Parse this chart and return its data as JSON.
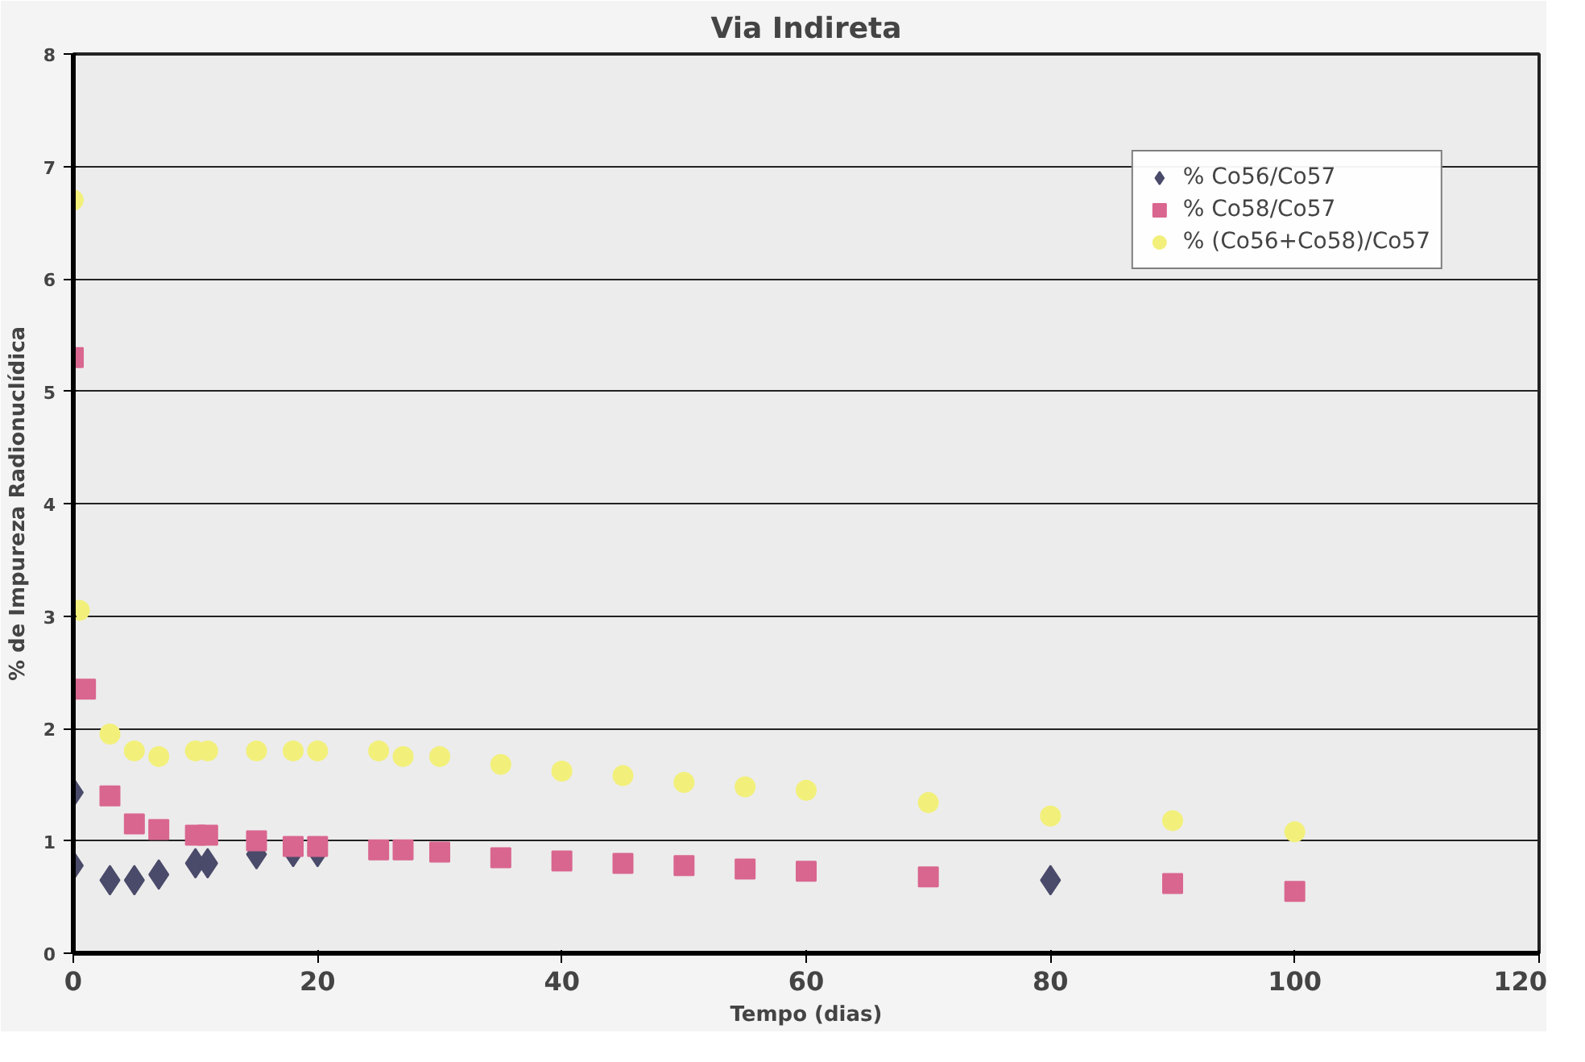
{
  "chart_data": {
    "type": "scatter",
    "title": "Via Indireta",
    "xlabel": "Tempo (dias)",
    "ylabel": "% de Impureza Radionuclídica",
    "xlim": [
      0,
      120
    ],
    "xticks": [
      0,
      20,
      40,
      60,
      80,
      100,
      120
    ],
    "ylim": [
      0,
      8
    ],
    "yticks": [
      0,
      1,
      2,
      3,
      4,
      5,
      6,
      7,
      8
    ],
    "grid": "y",
    "legend": "top right",
    "series": [
      {
        "name": "% Co56/Co57",
        "color": "#4a4a6a",
        "marker": "diamond",
        "x": [
          0,
          0,
          3,
          5,
          7,
          10,
          11,
          15,
          18,
          20,
          80
        ],
        "values": [
          1.43,
          0.78,
          0.65,
          0.65,
          0.7,
          0.8,
          0.8,
          0.88,
          0.9,
          0.9,
          0.65
        ]
      },
      {
        "name": "% Co58/Co57",
        "color": "#d9668f",
        "marker": "square",
        "x": [
          0,
          1,
          3,
          5,
          7,
          10,
          11,
          15,
          18,
          20,
          25,
          27,
          30,
          35,
          40,
          45,
          50,
          55,
          60,
          70,
          90,
          100
        ],
        "values": [
          5.3,
          2.35,
          1.4,
          1.15,
          1.1,
          1.05,
          1.05,
          1.0,
          0.95,
          0.95,
          0.92,
          0.92,
          0.9,
          0.85,
          0.82,
          0.8,
          0.78,
          0.75,
          0.73,
          0.68,
          0.62,
          0.55
        ]
      },
      {
        "name": "% (Co56+Co58)/Co57",
        "color": "#f2f07a",
        "marker": "circle",
        "x": [
          0,
          0.5,
          3,
          5,
          7,
          10,
          11,
          15,
          18,
          20,
          25,
          27,
          30,
          35,
          40,
          45,
          50,
          55,
          60,
          70,
          80,
          90,
          100
        ],
        "values": [
          6.7,
          3.05,
          1.95,
          1.8,
          1.75,
          1.8,
          1.8,
          1.8,
          1.8,
          1.8,
          1.8,
          1.75,
          1.75,
          1.68,
          1.62,
          1.58,
          1.52,
          1.48,
          1.45,
          1.34,
          1.22,
          1.18,
          1.08
        ]
      }
    ]
  }
}
